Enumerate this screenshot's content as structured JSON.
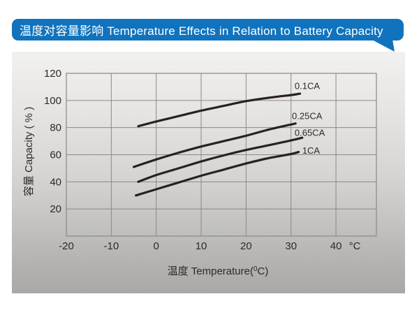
{
  "banner": {
    "title": "温度对容量影响 Temperature Effects in Relation to Battery Capacity",
    "bg_color": "#1173bd",
    "text_color": "#ffffff"
  },
  "chart_data": {
    "type": "line",
    "title": "温度对容量影响 Temperature Effects in Relation to Battery Capacity",
    "xlabel_cn": "温度",
    "xlabel_en": "Temperature(",
    "xlabel_sup": "0",
    "xlabel_end": "C)",
    "ylabel": "容量 Capacity ( % )",
    "x_ticks": [
      -20,
      -10,
      0,
      10,
      20,
      30,
      40
    ],
    "x_axis_unit": "°C",
    "y_ticks": [
      20,
      40,
      60,
      80,
      100,
      120
    ],
    "xlim": [
      -20,
      49
    ],
    "ylim": [
      0,
      120
    ],
    "grid": true,
    "legend": "inline-labels",
    "line_color": "#2a211d",
    "grid_color": "#8b8987",
    "text_color": "#2d2a27",
    "series": [
      {
        "name": "0.1CA",
        "label_pos": [
          30.8,
          108.3
        ],
        "points": [
          [
            -4,
            81
          ],
          [
            0,
            84.5
          ],
          [
            5,
            88.5
          ],
          [
            10,
            92.5
          ],
          [
            15,
            96
          ],
          [
            20,
            99.5
          ],
          [
            25,
            102
          ],
          [
            30,
            104
          ],
          [
            32,
            105
          ]
        ]
      },
      {
        "name": "0.25CA",
        "label_pos": [
          30.2,
          86.2
        ],
        "points": [
          [
            -5,
            51
          ],
          [
            0,
            56.5
          ],
          [
            5,
            61.5
          ],
          [
            10,
            66
          ],
          [
            15,
            70
          ],
          [
            20,
            74
          ],
          [
            25,
            78.5
          ],
          [
            31,
            83
          ]
        ]
      },
      {
        "name": "0.65CA",
        "label_pos": [
          30.8,
          74.0
        ],
        "points": [
          [
            -4,
            40
          ],
          [
            0,
            45
          ],
          [
            5,
            50
          ],
          [
            10,
            55
          ],
          [
            15,
            59.5
          ],
          [
            20,
            63.5
          ],
          [
            25,
            67
          ],
          [
            30,
            70.5
          ],
          [
            32.5,
            72.5
          ]
        ]
      },
      {
        "name": "1CA",
        "label_pos": [
          32.5,
          60.9
        ],
        "points": [
          [
            -4.5,
            30
          ],
          [
            0,
            34.5
          ],
          [
            5,
            39.5
          ],
          [
            10,
            44.5
          ],
          [
            15,
            49
          ],
          [
            20,
            53.5
          ],
          [
            25,
            57.5
          ],
          [
            30,
            60.5
          ],
          [
            31.7,
            62
          ]
        ]
      }
    ]
  }
}
